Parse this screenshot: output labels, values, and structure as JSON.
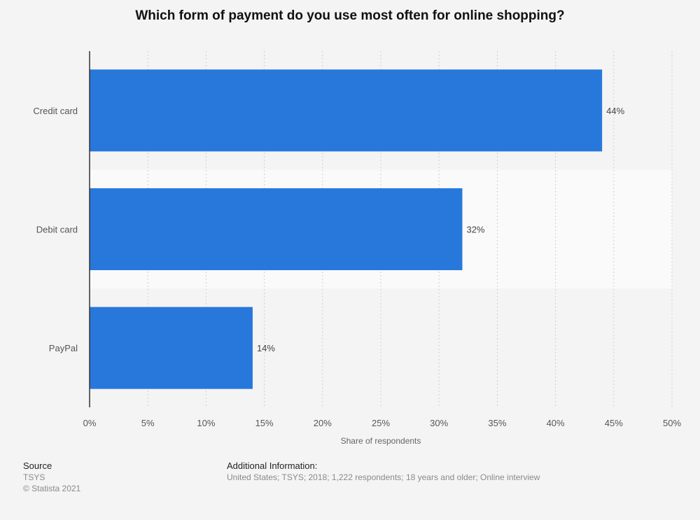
{
  "chart_data": {
    "type": "bar",
    "orientation": "horizontal",
    "title": "Which form of payment do you use most often for online shopping?",
    "categories": [
      "Credit card",
      "Debit card",
      "PayPal"
    ],
    "values": [
      44,
      32,
      14
    ],
    "value_labels": [
      "44%",
      "32%",
      "14%"
    ],
    "xlabel": "Share of respondents",
    "ylabel": "",
    "xlim": [
      0,
      50
    ],
    "x_ticks": [
      "0%",
      "5%",
      "10%",
      "15%",
      "20%",
      "25%",
      "30%",
      "35%",
      "40%",
      "45%",
      "50%"
    ],
    "grid": true,
    "bar_color": "#2878dc"
  },
  "footer": {
    "source_label": "Source",
    "source_name": "TSYS",
    "copyright": "© Statista 2021",
    "info_label": "Additional Information:",
    "info_text": "United States; TSYS; 2018; 1,222 respondents; 18 years and older; Online interview"
  }
}
